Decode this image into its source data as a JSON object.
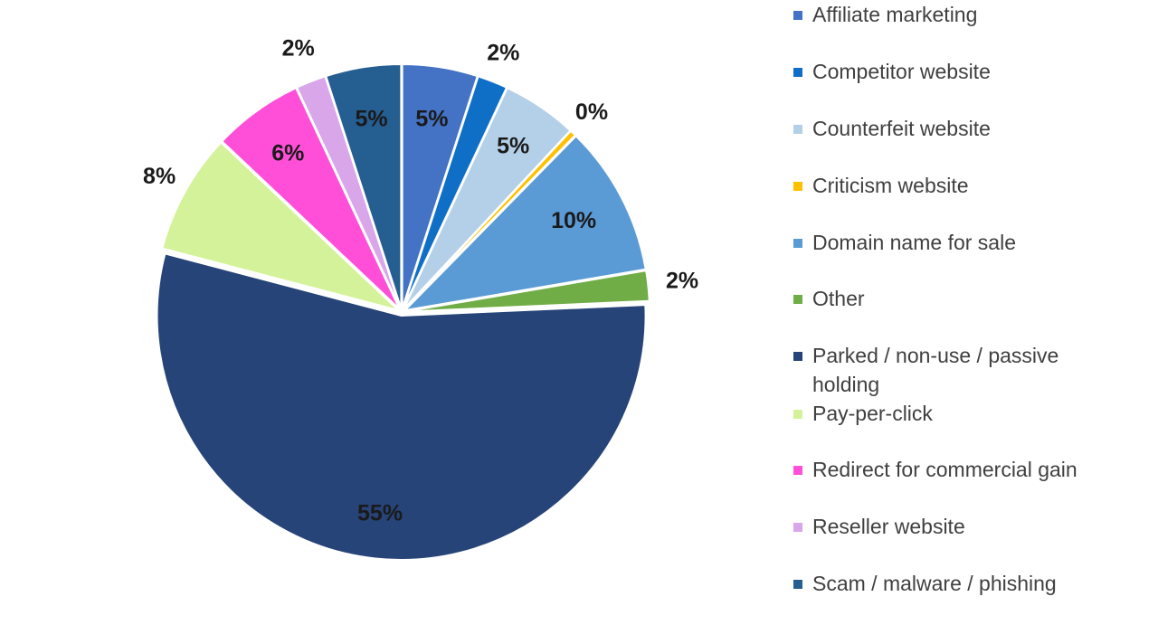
{
  "chart_data": {
    "type": "pie",
    "title": "",
    "legend_position": "right",
    "slices": [
      {
        "name": "Affiliate marketing",
        "value": 5,
        "label": "5%",
        "color": "#4472c4"
      },
      {
        "name": "Competitor website",
        "value": 2,
        "label": "2%",
        "color": "#0f6fc6"
      },
      {
        "name": "Counterfeit website",
        "value": 5,
        "label": "5%",
        "color": "#b4d0e8"
      },
      {
        "name": "Criticism website",
        "value": 0.4,
        "label": "0%",
        "color": "#ffc000"
      },
      {
        "name": "Domain name for sale",
        "value": 10,
        "label": "10%",
        "color": "#5b9bd5"
      },
      {
        "name": "Other",
        "value": 2,
        "label": "2%",
        "color": "#70ad47"
      },
      {
        "name": "Parked / non-use / passive holding",
        "value": 55,
        "label": "55%",
        "color": "#264478"
      },
      {
        "name": "Pay-per-click",
        "value": 8,
        "label": "8%",
        "color": "#d4f29a"
      },
      {
        "name": "Redirect for commercial gain",
        "value": 6,
        "label": "6%",
        "color": "#ff4fd8"
      },
      {
        "name": "Reseller website",
        "value": 2,
        "label": "2%",
        "color": "#d9a6ea"
      },
      {
        "name": "Scam / malware / phishing",
        "value": 5,
        "label": "5%",
        "color": "#255e91"
      }
    ]
  }
}
